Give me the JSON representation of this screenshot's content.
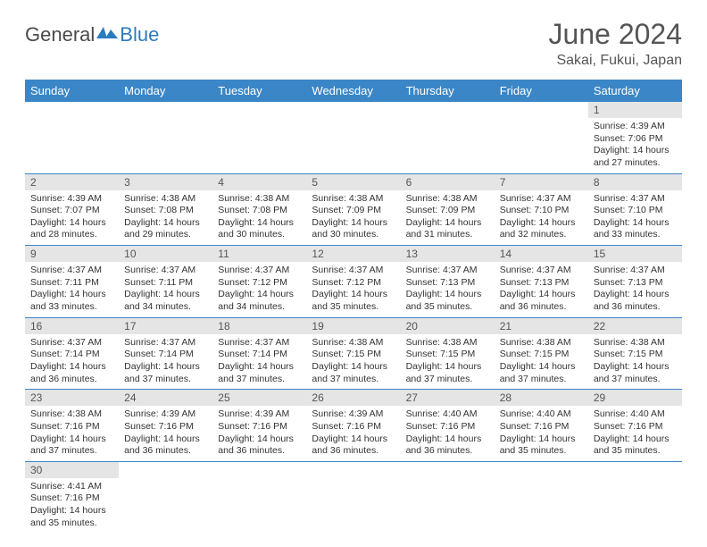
{
  "logo": {
    "general": "General",
    "blue": "Blue"
  },
  "header": {
    "month_title": "June 2024",
    "location": "Sakai, Fukui, Japan"
  },
  "colors": {
    "header_bg": "#3b86c6",
    "header_text": "#ffffff",
    "daynum_bg": "#e5e5e5",
    "border": "#3b86c6",
    "text": "#333333",
    "title_color": "#555555",
    "logo_blue": "#2b7bbf"
  },
  "weekdays": [
    "Sunday",
    "Monday",
    "Tuesday",
    "Wednesday",
    "Thursday",
    "Friday",
    "Saturday"
  ],
  "weeks": [
    [
      {
        "n": "",
        "empty": true
      },
      {
        "n": "",
        "empty": true
      },
      {
        "n": "",
        "empty": true
      },
      {
        "n": "",
        "empty": true
      },
      {
        "n": "",
        "empty": true
      },
      {
        "n": "",
        "empty": true
      },
      {
        "n": "1",
        "sunrise": "Sunrise: 4:39 AM",
        "sunset": "Sunset: 7:06 PM",
        "daylight": "Daylight: 14 hours and 27 minutes."
      }
    ],
    [
      {
        "n": "2",
        "sunrise": "Sunrise: 4:39 AM",
        "sunset": "Sunset: 7:07 PM",
        "daylight": "Daylight: 14 hours and 28 minutes."
      },
      {
        "n": "3",
        "sunrise": "Sunrise: 4:38 AM",
        "sunset": "Sunset: 7:08 PM",
        "daylight": "Daylight: 14 hours and 29 minutes."
      },
      {
        "n": "4",
        "sunrise": "Sunrise: 4:38 AM",
        "sunset": "Sunset: 7:08 PM",
        "daylight": "Daylight: 14 hours and 30 minutes."
      },
      {
        "n": "5",
        "sunrise": "Sunrise: 4:38 AM",
        "sunset": "Sunset: 7:09 PM",
        "daylight": "Daylight: 14 hours and 30 minutes."
      },
      {
        "n": "6",
        "sunrise": "Sunrise: 4:38 AM",
        "sunset": "Sunset: 7:09 PM",
        "daylight": "Daylight: 14 hours and 31 minutes."
      },
      {
        "n": "7",
        "sunrise": "Sunrise: 4:37 AM",
        "sunset": "Sunset: 7:10 PM",
        "daylight": "Daylight: 14 hours and 32 minutes."
      },
      {
        "n": "8",
        "sunrise": "Sunrise: 4:37 AM",
        "sunset": "Sunset: 7:10 PM",
        "daylight": "Daylight: 14 hours and 33 minutes."
      }
    ],
    [
      {
        "n": "9",
        "sunrise": "Sunrise: 4:37 AM",
        "sunset": "Sunset: 7:11 PM",
        "daylight": "Daylight: 14 hours and 33 minutes."
      },
      {
        "n": "10",
        "sunrise": "Sunrise: 4:37 AM",
        "sunset": "Sunset: 7:11 PM",
        "daylight": "Daylight: 14 hours and 34 minutes."
      },
      {
        "n": "11",
        "sunrise": "Sunrise: 4:37 AM",
        "sunset": "Sunset: 7:12 PM",
        "daylight": "Daylight: 14 hours and 34 minutes."
      },
      {
        "n": "12",
        "sunrise": "Sunrise: 4:37 AM",
        "sunset": "Sunset: 7:12 PM",
        "daylight": "Daylight: 14 hours and 35 minutes."
      },
      {
        "n": "13",
        "sunrise": "Sunrise: 4:37 AM",
        "sunset": "Sunset: 7:13 PM",
        "daylight": "Daylight: 14 hours and 35 minutes."
      },
      {
        "n": "14",
        "sunrise": "Sunrise: 4:37 AM",
        "sunset": "Sunset: 7:13 PM",
        "daylight": "Daylight: 14 hours and 36 minutes."
      },
      {
        "n": "15",
        "sunrise": "Sunrise: 4:37 AM",
        "sunset": "Sunset: 7:13 PM",
        "daylight": "Daylight: 14 hours and 36 minutes."
      }
    ],
    [
      {
        "n": "16",
        "sunrise": "Sunrise: 4:37 AM",
        "sunset": "Sunset: 7:14 PM",
        "daylight": "Daylight: 14 hours and 36 minutes."
      },
      {
        "n": "17",
        "sunrise": "Sunrise: 4:37 AM",
        "sunset": "Sunset: 7:14 PM",
        "daylight": "Daylight: 14 hours and 37 minutes."
      },
      {
        "n": "18",
        "sunrise": "Sunrise: 4:37 AM",
        "sunset": "Sunset: 7:14 PM",
        "daylight": "Daylight: 14 hours and 37 minutes."
      },
      {
        "n": "19",
        "sunrise": "Sunrise: 4:38 AM",
        "sunset": "Sunset: 7:15 PM",
        "daylight": "Daylight: 14 hours and 37 minutes."
      },
      {
        "n": "20",
        "sunrise": "Sunrise: 4:38 AM",
        "sunset": "Sunset: 7:15 PM",
        "daylight": "Daylight: 14 hours and 37 minutes."
      },
      {
        "n": "21",
        "sunrise": "Sunrise: 4:38 AM",
        "sunset": "Sunset: 7:15 PM",
        "daylight": "Daylight: 14 hours and 37 minutes."
      },
      {
        "n": "22",
        "sunrise": "Sunrise: 4:38 AM",
        "sunset": "Sunset: 7:15 PM",
        "daylight": "Daylight: 14 hours and 37 minutes."
      }
    ],
    [
      {
        "n": "23",
        "sunrise": "Sunrise: 4:38 AM",
        "sunset": "Sunset: 7:16 PM",
        "daylight": "Daylight: 14 hours and 37 minutes."
      },
      {
        "n": "24",
        "sunrise": "Sunrise: 4:39 AM",
        "sunset": "Sunset: 7:16 PM",
        "daylight": "Daylight: 14 hours and 36 minutes."
      },
      {
        "n": "25",
        "sunrise": "Sunrise: 4:39 AM",
        "sunset": "Sunset: 7:16 PM",
        "daylight": "Daylight: 14 hours and 36 minutes."
      },
      {
        "n": "26",
        "sunrise": "Sunrise: 4:39 AM",
        "sunset": "Sunset: 7:16 PM",
        "daylight": "Daylight: 14 hours and 36 minutes."
      },
      {
        "n": "27",
        "sunrise": "Sunrise: 4:40 AM",
        "sunset": "Sunset: 7:16 PM",
        "daylight": "Daylight: 14 hours and 36 minutes."
      },
      {
        "n": "28",
        "sunrise": "Sunrise: 4:40 AM",
        "sunset": "Sunset: 7:16 PM",
        "daylight": "Daylight: 14 hours and 35 minutes."
      },
      {
        "n": "29",
        "sunrise": "Sunrise: 4:40 AM",
        "sunset": "Sunset: 7:16 PM",
        "daylight": "Daylight: 14 hours and 35 minutes."
      }
    ],
    [
      {
        "n": "30",
        "sunrise": "Sunrise: 4:41 AM",
        "sunset": "Sunset: 7:16 PM",
        "daylight": "Daylight: 14 hours and 35 minutes."
      },
      {
        "n": "",
        "empty": true
      },
      {
        "n": "",
        "empty": true
      },
      {
        "n": "",
        "empty": true
      },
      {
        "n": "",
        "empty": true
      },
      {
        "n": "",
        "empty": true
      },
      {
        "n": "",
        "empty": true
      }
    ]
  ]
}
